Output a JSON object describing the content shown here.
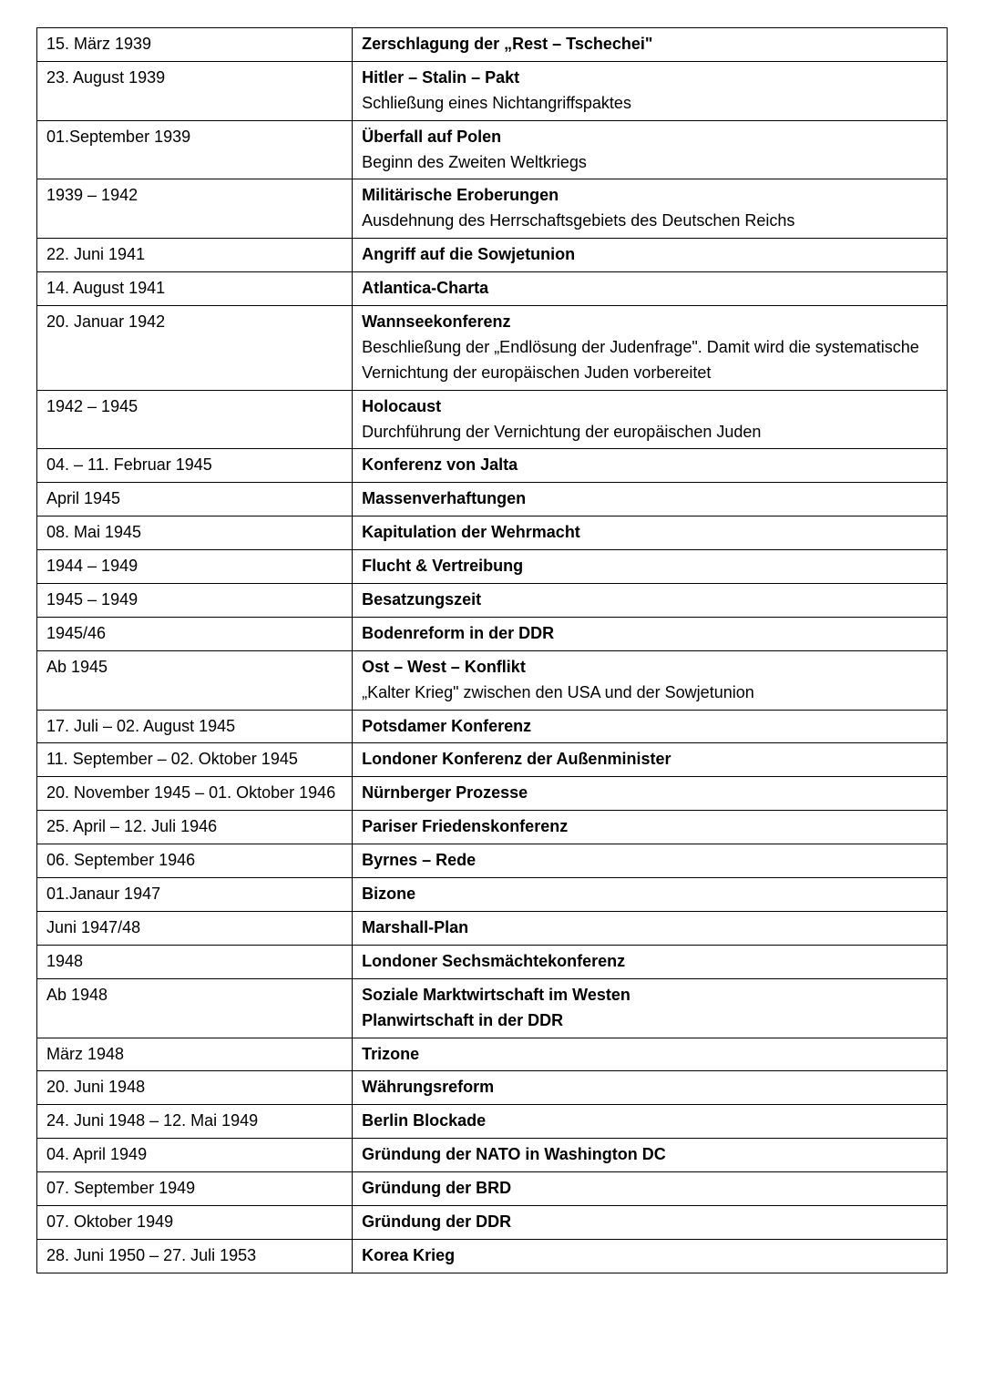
{
  "table": {
    "columns_width_pct": [
      34,
      66
    ],
    "border_color": "#000000",
    "background_color": "#ffffff",
    "font_family": "Comic Sans MS",
    "font_size_pt": 13,
    "rows": [
      {
        "date": "15. März 1939",
        "title": "Zerschlagung der „Rest – Tschechei\"",
        "desc": ""
      },
      {
        "date": "23. August 1939",
        "title": "Hitler – Stalin – Pakt",
        "desc": "Schließung eines Nichtangriffspaktes"
      },
      {
        "date": "01.September 1939",
        "title": "Überfall auf Polen",
        "desc": "Beginn des Zweiten Weltkriegs"
      },
      {
        "date": "1939 – 1942",
        "title": "Militärische Eroberungen",
        "desc": "Ausdehnung des Herrschaftsgebiets des Deutschen Reichs"
      },
      {
        "date": "22. Juni 1941",
        "title": "Angriff auf die Sowjetunion",
        "desc": ""
      },
      {
        "date": "14. August 1941",
        "title": "Atlantica-Charta",
        "desc": ""
      },
      {
        "date": "20. Januar 1942",
        "title": "Wannseekonferenz",
        "desc": "Beschließung der „Endlösung der Judenfrage\". Damit wird die systematische Vernichtung der europäischen Juden vorbereitet"
      },
      {
        "date": "1942 – 1945",
        "title": "Holocaust",
        "desc": "Durchführung der Vernichtung der europäischen Juden"
      },
      {
        "date": "04. – 11. Februar 1945",
        "title": "Konferenz von Jalta",
        "desc": ""
      },
      {
        "date": "April 1945",
        "title": "Massenverhaftungen",
        "desc": ""
      },
      {
        "date": "08. Mai 1945",
        "title": "Kapitulation der Wehrmacht",
        "desc": ""
      },
      {
        "date": "1944 – 1949",
        "title": "Flucht & Vertreibung",
        "desc": ""
      },
      {
        "date": "1945 – 1949",
        "title": "Besatzungszeit",
        "desc": ""
      },
      {
        "date": "1945/46",
        "title": "Bodenreform in der DDR",
        "desc": ""
      },
      {
        "date": "Ab 1945",
        "title": "Ost – West – Konflikt",
        "desc": "„Kalter Krieg\" zwischen den USA und der Sowjetunion"
      },
      {
        "date": "17. Juli – 02. August 1945",
        "title": "Potsdamer Konferenz",
        "desc": ""
      },
      {
        "date": "11. September – 02. Oktober 1945",
        "title": "Londoner Konferenz der Außenminister",
        "desc": ""
      },
      {
        "date": "20. November 1945 – 01. Oktober 1946",
        "title": "Nürnberger Prozesse",
        "desc": ""
      },
      {
        "date": "25. April – 12. Juli 1946",
        "title": "Pariser Friedenskonferenz",
        "desc": ""
      },
      {
        "date": "06. September 1946",
        "title": "Byrnes – Rede",
        "desc": ""
      },
      {
        "date": "01.Janaur 1947",
        "title": "Bizone",
        "desc": ""
      },
      {
        "date": "Juni 1947/48",
        "title": "Marshall-Plan",
        "desc": ""
      },
      {
        "date": "1948",
        "title": "Londoner Sechsmächtekonferenz",
        "desc": ""
      },
      {
        "date": "Ab 1948",
        "title": "Soziale Marktwirtschaft im Westen",
        "desc": "",
        "title2": "Planwirtschaft in der DDR"
      },
      {
        "date": "März 1948",
        "title": "Trizone",
        "desc": ""
      },
      {
        "date": "20. Juni 1948",
        "title": "Währungsreform",
        "desc": ""
      },
      {
        "date": "24. Juni 1948 – 12. Mai 1949",
        "title": "Berlin Blockade",
        "desc": ""
      },
      {
        "date": "04. April 1949",
        "title": "Gründung der NATO in Washington DC",
        "desc": ""
      },
      {
        "date": "07. September 1949",
        "title": "Gründung der BRD",
        "desc": ""
      },
      {
        "date": "07. Oktober 1949",
        "title": "Gründung der DDR",
        "desc": ""
      },
      {
        "date": "28. Juni 1950 – 27. Juli 1953",
        "title": "Korea Krieg",
        "desc": ""
      }
    ]
  }
}
